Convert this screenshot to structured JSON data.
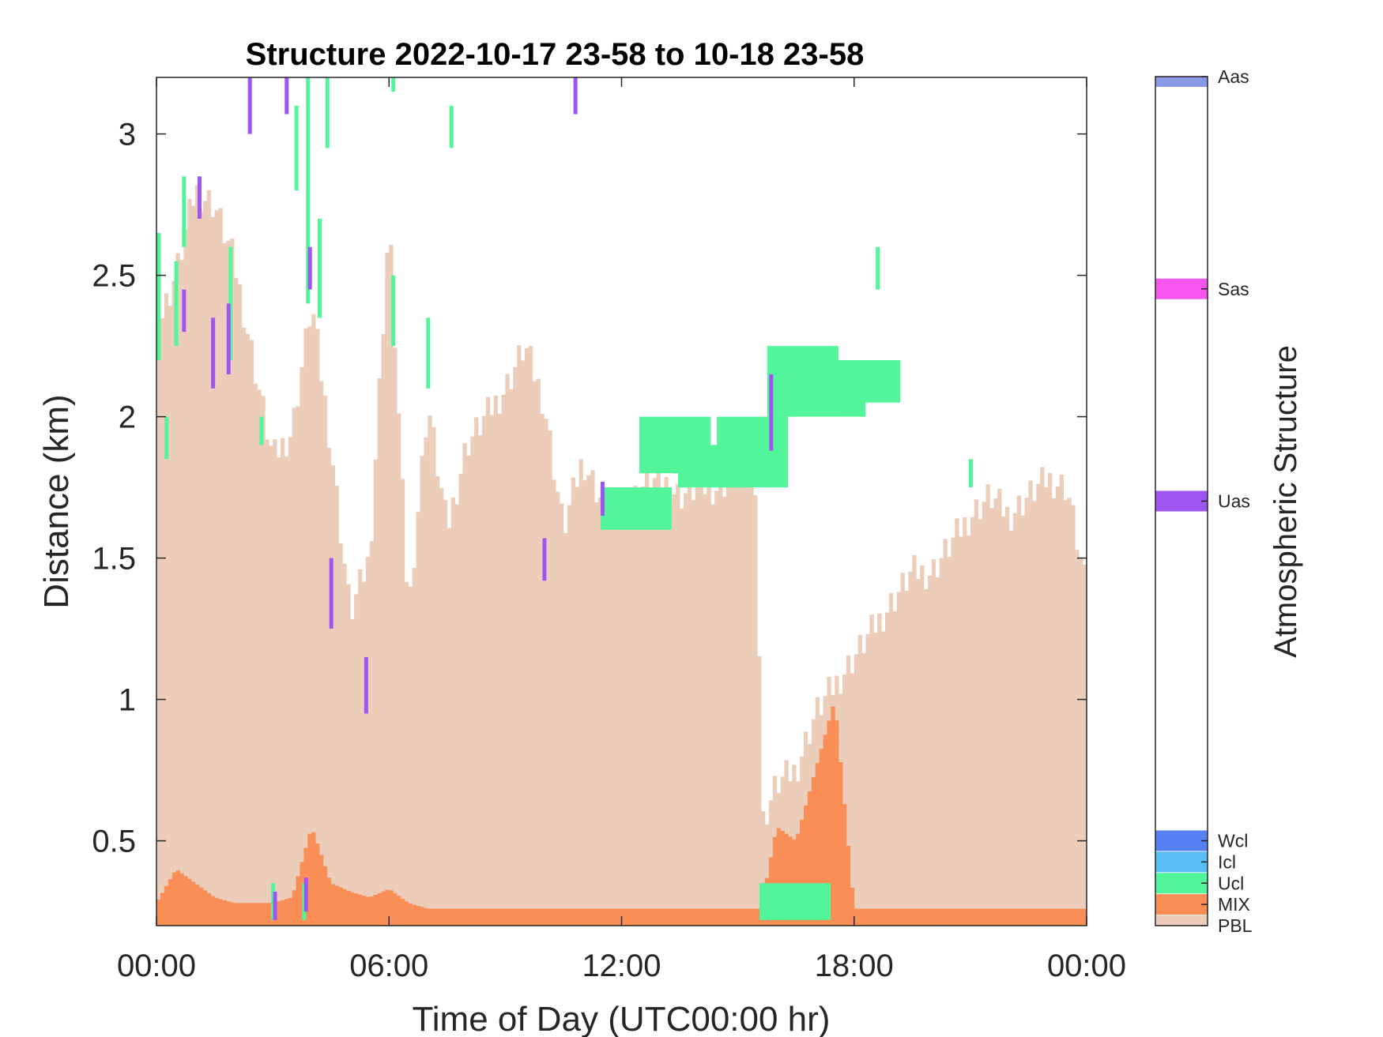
{
  "chart_data": {
    "type": "heatmap",
    "title": "Structure 2022-10-17 23-58 to 10-18 23-58",
    "xlabel": "Time of Day (UTC00:00 hr)",
    "ylabel": "Distance (km)",
    "xlim_hours": [
      0,
      24
    ],
    "ylim_km": [
      0.2,
      3.2
    ],
    "x_ticks": [
      {
        "value": 0,
        "label": "00:00"
      },
      {
        "value": 6,
        "label": "06:00"
      },
      {
        "value": 12,
        "label": "12:00"
      },
      {
        "value": 18,
        "label": "18:00"
      },
      {
        "value": 24,
        "label": "00:00"
      }
    ],
    "y_ticks": [
      {
        "value": 0.5,
        "label": "0.5"
      },
      {
        "value": 1,
        "label": "1"
      },
      {
        "value": 1.5,
        "label": "1.5"
      },
      {
        "value": 2,
        "label": "2"
      },
      {
        "value": 2.5,
        "label": "2.5"
      },
      {
        "value": 3,
        "label": "3"
      }
    ],
    "grid": false,
    "colorbar": {
      "title": "Atmospheric Structure",
      "classes": [
        {
          "label": "PBL",
          "color": "#EBCDB9"
        },
        {
          "label": "MIX",
          "color": "#F98F56"
        },
        {
          "label": "Ucl",
          "color": "#52F59A"
        },
        {
          "label": "Icl",
          "color": "#57BEF6"
        },
        {
          "label": "Wcl",
          "color": "#5581F3"
        },
        {
          "label": "Uas",
          "color": "#9E55F2"
        },
        {
          "label": "Sas",
          "color": "#F855EE"
        },
        {
          "label": "Aas",
          "color": "#8A99E6"
        }
      ]
    },
    "pbl_profile": {
      "class": "PBL",
      "hours": [
        0.0,
        0.5,
        1.0,
        1.5,
        2.0,
        2.5,
        3.0,
        3.5,
        4.0,
        4.5,
        5.0,
        5.5,
        6.0,
        6.5,
        7.0,
        7.5,
        8.0,
        8.5,
        9.0,
        9.5,
        10.0,
        10.5,
        11.0,
        11.5,
        12.0,
        12.5,
        13.0,
        13.5,
        14.0,
        14.5,
        15.0,
        15.5,
        15.6,
        16.0,
        16.5,
        17.0,
        17.5,
        18.0,
        18.5,
        19.0,
        19.5,
        20.0,
        20.5,
        21.0,
        21.5,
        22.0,
        22.5,
        23.0,
        23.5,
        24.0
      ],
      "top_km": [
        2.3,
        2.5,
        2.8,
        2.75,
        2.55,
        2.2,
        1.85,
        1.95,
        2.4,
        1.9,
        1.3,
        1.5,
        2.7,
        1.3,
        2.05,
        1.6,
        1.9,
        2.0,
        2.1,
        2.25,
        2.05,
        1.6,
        1.85,
        1.7,
        1.65,
        1.75,
        1.78,
        1.72,
        1.75,
        1.75,
        1.8,
        1.78,
        0.55,
        0.7,
        0.75,
        0.95,
        1.05,
        1.15,
        1.25,
        1.35,
        1.45,
        1.45,
        1.55,
        1.65,
        1.72,
        1.65,
        1.72,
        1.78,
        1.75,
        1.38
      ]
    },
    "mix_profile": {
      "class": "MIX",
      "hours": [
        0.0,
        0.5,
        1.0,
        1.5,
        2.0,
        2.5,
        3.0,
        3.5,
        4.0,
        4.5,
        5.0,
        5.5,
        6.0,
        6.5,
        7.0,
        7.5,
        8.0,
        8.5,
        9.0,
        10.0,
        11.0,
        12.0,
        13.0,
        14.0,
        15.0,
        15.5,
        15.6,
        16.0,
        16.5,
        17.0,
        17.5,
        18.0,
        18.5,
        19.0,
        20.0,
        21.0,
        22.0,
        23.0,
        24.0
      ],
      "top_km": [
        0.28,
        0.4,
        0.35,
        0.3,
        0.28,
        0.28,
        0.28,
        0.3,
        0.55,
        0.35,
        0.32,
        0.3,
        0.33,
        0.28,
        0.26,
        0.26,
        0.26,
        0.26,
        0.26,
        0.26,
        0.26,
        0.26,
        0.26,
        0.26,
        0.26,
        0.26,
        0.26,
        0.55,
        0.5,
        0.75,
        1.0,
        0.26,
        0.26,
        0.26,
        0.26,
        0.26,
        0.26,
        0.26,
        0.26
      ]
    },
    "cloud_segments": [
      {
        "class": "Ucl",
        "hour": 0.05,
        "bottom_km": 2.2,
        "top_km": 2.65
      },
      {
        "class": "Ucl",
        "hour": 0.25,
        "bottom_km": 1.85,
        "top_km": 2.0
      },
      {
        "class": "Ucl",
        "hour": 0.5,
        "bottom_km": 2.25,
        "top_km": 2.55
      },
      {
        "class": "Ucl",
        "hour": 0.7,
        "bottom_km": 2.6,
        "top_km": 2.85
      },
      {
        "class": "Ucl",
        "hour": 1.9,
        "bottom_km": 2.2,
        "top_km": 2.6
      },
      {
        "class": "Ucl",
        "hour": 2.7,
        "bottom_km": 1.9,
        "top_km": 2.0
      },
      {
        "class": "Ucl",
        "hour": 3.6,
        "bottom_km": 2.8,
        "top_km": 3.1
      },
      {
        "class": "Ucl",
        "hour": 3.9,
        "bottom_km": 2.4,
        "top_km": 3.2
      },
      {
        "class": "Ucl",
        "hour": 4.2,
        "bottom_km": 2.35,
        "top_km": 2.7
      },
      {
        "class": "Ucl",
        "hour": 4.4,
        "bottom_km": 2.95,
        "top_km": 3.2
      },
      {
        "class": "Ucl",
        "hour": 6.1,
        "bottom_km": 3.15,
        "top_km": 3.2
      },
      {
        "class": "Ucl",
        "hour": 6.1,
        "bottom_km": 2.25,
        "top_km": 2.5
      },
      {
        "class": "Ucl",
        "hour": 7.0,
        "bottom_km": 2.1,
        "top_km": 2.35
      },
      {
        "class": "Ucl",
        "hour": 7.6,
        "bottom_km": 2.95,
        "top_km": 3.1
      },
      {
        "class": "Ucl",
        "hour": 11.5,
        "bottom_km": 1.6,
        "top_km": 1.75
      },
      {
        "class": "Ucl",
        "hour": 12.5,
        "bottom_km": 1.8,
        "top_km": 2.0
      },
      {
        "class": "Ucl",
        "hour": 13.5,
        "bottom_km": 1.75,
        "top_km": 1.9
      },
      {
        "class": "Ucl",
        "hour": 14.5,
        "bottom_km": 1.75,
        "top_km": 2.0
      },
      {
        "class": "Ucl",
        "hour": 15.8,
        "bottom_km": 2.0,
        "top_km": 2.25
      },
      {
        "class": "Ucl",
        "hour": 16.5,
        "bottom_km": 2.0,
        "top_km": 2.2
      },
      {
        "class": "Ucl",
        "hour": 17.4,
        "bottom_km": 2.05,
        "top_km": 2.2
      },
      {
        "class": "Ucl",
        "hour": 18.6,
        "bottom_km": 2.45,
        "top_km": 2.6
      },
      {
        "class": "Ucl",
        "hour": 21.0,
        "bottom_km": 1.75,
        "top_km": 1.85
      },
      {
        "class": "Ucl",
        "hour": 15.6,
        "bottom_km": 0.22,
        "top_km": 0.35
      },
      {
        "class": "Ucl",
        "hour": 3.0,
        "bottom_km": 0.22,
        "top_km": 0.35
      },
      {
        "class": "Ucl",
        "hour": 3.8,
        "bottom_km": 0.22,
        "top_km": 0.35
      },
      {
        "class": "Uas",
        "hour": 1.1,
        "bottom_km": 2.7,
        "top_km": 2.85
      },
      {
        "class": "Uas",
        "hour": 0.7,
        "bottom_km": 2.3,
        "top_km": 2.45
      },
      {
        "class": "Uas",
        "hour": 1.45,
        "bottom_km": 2.1,
        "top_km": 2.35
      },
      {
        "class": "Uas",
        "hour": 1.85,
        "bottom_km": 2.15,
        "top_km": 2.4
      },
      {
        "class": "Uas",
        "hour": 2.4,
        "bottom_km": 3.0,
        "top_km": 3.2
      },
      {
        "class": "Uas",
        "hour": 3.35,
        "bottom_km": 3.07,
        "top_km": 3.2
      },
      {
        "class": "Uas",
        "hour": 3.95,
        "bottom_km": 2.45,
        "top_km": 2.6
      },
      {
        "class": "Uas",
        "hour": 4.5,
        "bottom_km": 1.25,
        "top_km": 1.5
      },
      {
        "class": "Uas",
        "hour": 5.4,
        "bottom_km": 0.95,
        "top_km": 1.15
      },
      {
        "class": "Uas",
        "hour": 10.8,
        "bottom_km": 3.07,
        "top_km": 3.2
      },
      {
        "class": "Uas",
        "hour": 10.0,
        "bottom_km": 1.42,
        "top_km": 1.57
      },
      {
        "class": "Uas",
        "hour": 11.5,
        "bottom_km": 1.65,
        "top_km": 1.77
      },
      {
        "class": "Uas",
        "hour": 15.85,
        "bottom_km": 1.88,
        "top_km": 2.15
      },
      {
        "class": "Uas",
        "hour": 3.05,
        "bottom_km": 0.22,
        "top_km": 0.32
      },
      {
        "class": "Uas",
        "hour": 3.85,
        "bottom_km": 0.25,
        "top_km": 0.37
      }
    ]
  }
}
